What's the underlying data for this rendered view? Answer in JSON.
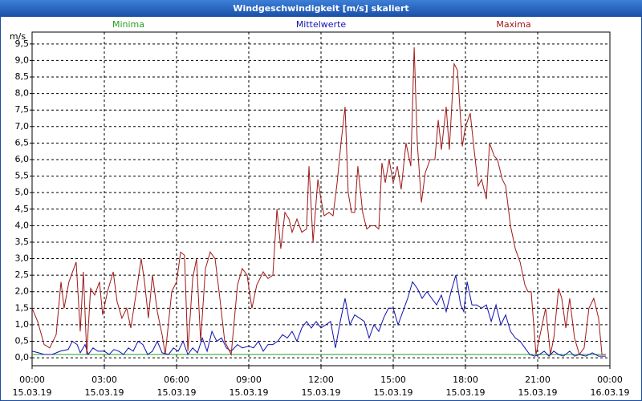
{
  "chart_data": {
    "type": "line",
    "title": "Windgeschwindigkeit [m/s] skaliert",
    "ylabel": "m/s",
    "ylim": [
      -0.24,
      9.86
    ],
    "xlim": [
      0,
      24
    ],
    "yticks": [
      {
        "value": 0,
        "label": "0,0"
      },
      {
        "value": 0.5,
        "label": "0,5"
      },
      {
        "value": 1,
        "label": "1,0"
      },
      {
        "value": 1.5,
        "label": "1,5"
      },
      {
        "value": 2,
        "label": "2,0"
      },
      {
        "value": 2.5,
        "label": "2,5"
      },
      {
        "value": 3,
        "label": "3,0"
      },
      {
        "value": 3.5,
        "label": "3,5"
      },
      {
        "value": 4,
        "label": "4,0"
      },
      {
        "value": 4.5,
        "label": "4,5"
      },
      {
        "value": 5,
        "label": "5,0"
      },
      {
        "value": 5.5,
        "label": "5,5"
      },
      {
        "value": 6,
        "label": "6,0"
      },
      {
        "value": 6.5,
        "label": "6,5"
      },
      {
        "value": 7,
        "label": "7,0"
      },
      {
        "value": 7.5,
        "label": "7,5"
      },
      {
        "value": 8,
        "label": "8,0"
      },
      {
        "value": 8.5,
        "label": "8,5"
      },
      {
        "value": 9,
        "label": "9,0"
      },
      {
        "value": 9.5,
        "label": "9,5"
      }
    ],
    "xticks": [
      {
        "value": 0,
        "label": "00:00"
      },
      {
        "value": 3,
        "label": "03:00"
      },
      {
        "value": 6,
        "label": "06:00"
      },
      {
        "value": 9,
        "label": "09:00"
      },
      {
        "value": 12,
        "label": "12:00"
      },
      {
        "value": 15,
        "label": "15:00"
      },
      {
        "value": 18,
        "label": "18:00"
      },
      {
        "value": 21,
        "label": "21:00"
      },
      {
        "value": 24,
        "label": "00:00"
      }
    ],
    "xtick_dates": [
      "15.03.19",
      "15.03.19",
      "15.03.19",
      "15.03.19",
      "15.03.19",
      "15.03.19",
      "15.03.19",
      "15.03.19",
      "16.03.19"
    ],
    "grid": true,
    "series": [
      {
        "name": "Minima",
        "color": "#22a022",
        "x": [
          0,
          23.83
        ],
        "values": [
          0.1,
          0.1
        ]
      },
      {
        "name": "Mittelwerte",
        "color": "#1010b0",
        "x": [
          0,
          0.27,
          0.5,
          0.83,
          1.17,
          1.5,
          1.67,
          1.87,
          2,
          2.2,
          2.33,
          2.53,
          2.73,
          3,
          3.2,
          3.4,
          3.6,
          3.8,
          4,
          4.2,
          4.4,
          4.6,
          4.8,
          5,
          5.2,
          5.4,
          5.67,
          5.87,
          6.07,
          6.27,
          6.47,
          6.67,
          6.87,
          7.07,
          7.27,
          7.47,
          7.67,
          7.87,
          8.07,
          8.27,
          8.53,
          8.73,
          9,
          9.2,
          9.4,
          9.6,
          9.8,
          10,
          10.2,
          10.4,
          10.6,
          10.8,
          11,
          11.2,
          11.4,
          11.6,
          11.8,
          12,
          12.2,
          12.4,
          12.6,
          12.8,
          13,
          13.2,
          13.4,
          13.6,
          13.8,
          14,
          14.2,
          14.4,
          14.6,
          14.8,
          15,
          15.2,
          15.4,
          15.6,
          15.8,
          16,
          16.2,
          16.4,
          16.6,
          16.8,
          17,
          17.2,
          17.4,
          17.6,
          17.8,
          17.93,
          18.07,
          18.27,
          18.47,
          18.67,
          18.87,
          19.07,
          19.27,
          19.47,
          19.67,
          19.87,
          20.07,
          20.27,
          20.47,
          20.67,
          20.87,
          21.07,
          21.27,
          21.47,
          21.67,
          21.87,
          22.07,
          22.33,
          22.53,
          22.73,
          23,
          23.27,
          23.53,
          23.83
        ],
        "values": [
          0.2,
          0.15,
          0.1,
          0.1,
          0.2,
          0.25,
          0.5,
          0.4,
          0.15,
          0.4,
          0.1,
          0.3,
          0.2,
          0.2,
          0.1,
          0.25,
          0.2,
          0.1,
          0.3,
          0.2,
          0.5,
          0.4,
          0.1,
          0.2,
          0.5,
          0.15,
          0.1,
          0.3,
          0.2,
          0.5,
          0.1,
          0.3,
          0.15,
          0.6,
          0.2,
          0.8,
          0.5,
          0.6,
          0.3,
          0.2,
          0.4,
          0.3,
          0.35,
          0.3,
          0.5,
          0.2,
          0.4,
          0.4,
          0.5,
          0.7,
          0.6,
          0.8,
          0.5,
          0.9,
          1.1,
          0.9,
          1.1,
          0.9,
          1.0,
          1.1,
          0.3,
          1.1,
          1.8,
          1.0,
          1.3,
          1.2,
          1.1,
          0.6,
          1.0,
          0.8,
          1.2,
          1.5,
          1.5,
          1.0,
          1.4,
          1.8,
          2.3,
          2.1,
          1.8,
          2.0,
          1.8,
          1.6,
          1.9,
          1.4,
          2.0,
          2.5,
          1.6,
          1.4,
          2.3,
          1.6,
          1.6,
          1.5,
          1.6,
          1.1,
          1.6,
          1.0,
          1.3,
          0.8,
          0.6,
          0.5,
          0.3,
          0.1,
          0.05,
          0.1,
          0.2,
          0.05,
          0.2,
          0.1,
          0.05,
          0.2,
          0.05,
          0.1,
          0.05,
          0.15,
          0.05,
          0.05
        ]
      },
      {
        "name": "Maxima",
        "color": "#a01818",
        "x": [
          0,
          0.23,
          0.5,
          0.73,
          1,
          1.2,
          1.33,
          1.53,
          1.83,
          2,
          2.13,
          2.27,
          2.43,
          2.6,
          2.8,
          2.93,
          3.13,
          3.37,
          3.53,
          3.73,
          3.93,
          4.1,
          4.33,
          4.53,
          4.67,
          4.83,
          5,
          5.2,
          5.4,
          5.53,
          5.8,
          6,
          6.17,
          6.33,
          6.47,
          6.67,
          6.83,
          7,
          7.2,
          7.4,
          7.6,
          7.8,
          8,
          8.27,
          8.53,
          8.73,
          8.93,
          9.13,
          9.33,
          9.6,
          9.8,
          10,
          10.17,
          10.33,
          10.5,
          10.67,
          10.8,
          11,
          11.2,
          11.4,
          11.5,
          11.67,
          11.87,
          12,
          12.13,
          12.33,
          12.5,
          12.67,
          12.83,
          13,
          13.13,
          13.27,
          13.4,
          13.53,
          13.73,
          13.9,
          14.07,
          14.23,
          14.4,
          14.53,
          14.67,
          14.83,
          15,
          15.17,
          15.33,
          15.53,
          15.73,
          15.87,
          16,
          16.17,
          16.33,
          16.53,
          16.73,
          16.87,
          17,
          17.2,
          17.33,
          17.53,
          17.67,
          17.87,
          18,
          18.2,
          18.33,
          18.53,
          18.67,
          18.87,
          19,
          19.2,
          19.33,
          19.53,
          19.67,
          19.87,
          20.07,
          20.27,
          20.47,
          20.6,
          20.73,
          20.93,
          21.13,
          21.33,
          21.53,
          21.67,
          21.87,
          22,
          22.17,
          22.33,
          22.53,
          22.73,
          22.93,
          23.13,
          23.33,
          23.53,
          23.67,
          23.83
        ],
        "values": [
          1.5,
          1.1,
          0.4,
          0.3,
          0.7,
          2.3,
          1.5,
          2.3,
          2.9,
          0.8,
          2.6,
          0.1,
          2.1,
          1.9,
          2.3,
          1.3,
          2.0,
          2.6,
          1.7,
          1.2,
          1.5,
          0.9,
          2.0,
          3.0,
          2.3,
          1.2,
          2.5,
          1.4,
          0.7,
          0.1,
          2.0,
          2.3,
          3.2,
          3.1,
          0.2,
          2.4,
          3.0,
          0.5,
          2.7,
          3.2,
          3.0,
          1.8,
          0.5,
          0.1,
          2.2,
          2.7,
          2.5,
          1.5,
          2.2,
          2.6,
          2.4,
          2.5,
          4.5,
          3.3,
          4.4,
          4.2,
          3.8,
          4.2,
          3.8,
          3.9,
          5.8,
          3.5,
          5.4,
          4.8,
          4.3,
          4.4,
          4.3,
          5.3,
          6.5,
          7.6,
          5.0,
          4.4,
          4.4,
          5.8,
          4.4,
          3.9,
          4.0,
          4.0,
          3.9,
          5.9,
          5.3,
          6.0,
          5.3,
          5.8,
          5.1,
          6.5,
          5.8,
          9.4,
          6.5,
          4.7,
          5.6,
          6.0,
          6.0,
          7.2,
          6.3,
          7.6,
          6.3,
          8.9,
          8.7,
          6.4,
          7.0,
          7.4,
          6.5,
          5.2,
          5.4,
          4.8,
          6.5,
          6.1,
          6.0,
          5.4,
          5.2,
          4.0,
          3.3,
          2.9,
          2.2,
          2.0,
          2.0,
          0.1,
          0.8,
          1.5,
          0.1,
          0.6,
          2.1,
          1.8,
          0.9,
          1.8,
          0.6,
          0.1,
          0.3,
          1.5,
          1.8,
          1.2,
          0.1,
          0.1
        ]
      }
    ]
  }
}
